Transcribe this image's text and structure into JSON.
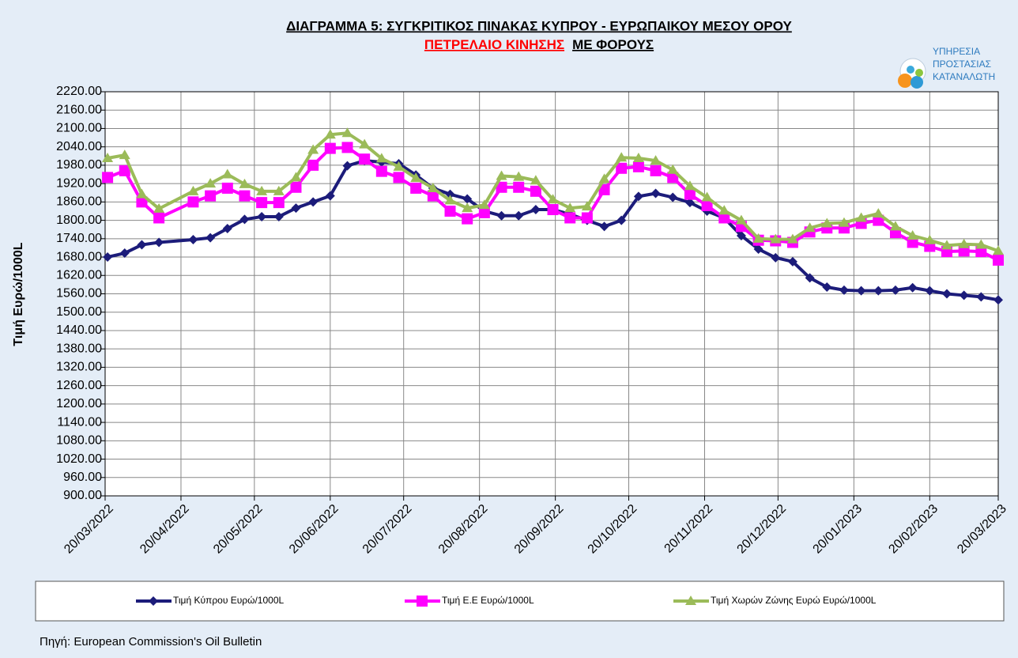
{
  "chart_data": {
    "type": "line",
    "title": "ΔΙΑΓΡΑΜΜΑ 5: ΣΥΓΚΡΙΤΙΚΟΣ ΠΙΝΑΚΑΣ ΚΥΠΡΟΥ - ΕΥΡΩΠΑΙΚΟΥ ΜΕΣΟΥ ΟΡΟΥ",
    "subtitle": [
      "ΠΕΤΡΕΛΑΙΟ ΚΙΝΗΣΗΣ",
      "ΜΕ ΦΟΡΟΥΣ"
    ],
    "logo": [
      "ΥΠΗΡΕΣΙΑ",
      "ΠΡΟΣΤΑΣΙΑΣ",
      "ΚΑΤΑΝΑΛΩΤΗ"
    ],
    "y_label": "Τιμή Ευρώ/1000L",
    "source": "Πηγή: European Commission's Oil Bulletin",
    "x": [
      "2022-03-21",
      "2022-03-28",
      "2022-04-04",
      "2022-04-11",
      "2022-04-25",
      "2022-05-02",
      "2022-05-09",
      "2022-05-16",
      "2022-05-23",
      "2022-05-30",
      "2022-06-06",
      "2022-06-13",
      "2022-06-20",
      "2022-06-27",
      "2022-07-04",
      "2022-07-11",
      "2022-07-18",
      "2022-07-25",
      "2022-08-01",
      "2022-08-08",
      "2022-08-15",
      "2022-08-22",
      "2022-08-29",
      "2022-09-05",
      "2022-09-12",
      "2022-09-19",
      "2022-09-26",
      "2022-10-03",
      "2022-10-10",
      "2022-10-17",
      "2022-10-24",
      "2022-10-31",
      "2022-11-07",
      "2022-11-14",
      "2022-11-21",
      "2022-11-28",
      "2022-12-05",
      "2022-12-12",
      "2022-12-19",
      "2022-12-26",
      "2023-01-02",
      "2023-01-09",
      "2023-01-16",
      "2023-01-23",
      "2023-01-30",
      "2023-02-06",
      "2023-02-13",
      "2023-02-20",
      "2023-02-27",
      "2023-03-06",
      "2023-03-13",
      "2023-03-20"
    ],
    "series": [
      {
        "name": "Τιμή Κύπρου Ευρώ/1000L",
        "color": "#1c1c7a",
        "marker": "diamond",
        "values": [
          1680,
          1693,
          1720,
          1728,
          1737,
          1743,
          1773,
          1803,
          1812,
          1812,
          1840,
          1860,
          1880,
          1978,
          1995,
          1990,
          1985,
          1948,
          1905,
          1885,
          1870,
          1830,
          1815,
          1815,
          1835,
          1835,
          1820,
          1800,
          1780,
          1800,
          1878,
          1888,
          1875,
          1858,
          1830,
          1808,
          1750,
          1706,
          1678,
          1665,
          1612,
          1582,
          1572,
          1570,
          1570,
          1572,
          1580,
          1570,
          1560,
          1555,
          1550,
          1540
        ]
      },
      {
        "name": "Τιμή Ε.Ε Ευρώ/1000L",
        "color": "#ff00ff",
        "marker": "square",
        "values": [
          1940,
          1962,
          1860,
          1808,
          1860,
          1880,
          1905,
          1880,
          1858,
          1858,
          1908,
          1980,
          2035,
          2038,
          2000,
          1960,
          1940,
          1905,
          1880,
          1830,
          1805,
          1825,
          1908,
          1908,
          1895,
          1835,
          1808,
          1808,
          1900,
          1970,
          1975,
          1962,
          1940,
          1885,
          1848,
          1808,
          1780,
          1735,
          1733,
          1728,
          1762,
          1775,
          1775,
          1790,
          1800,
          1760,
          1728,
          1715,
          1698,
          1700,
          1698,
          1670
        ]
      },
      {
        "name": "Τιμή Χωρών Ζώνης Ευρώ Ευρώ/1000L",
        "color": "#9bbb59",
        "marker": "triangle",
        "values": [
          2003,
          2013,
          1885,
          1838,
          1895,
          1920,
          1950,
          1918,
          1895,
          1895,
          1940,
          2030,
          2080,
          2085,
          2048,
          2002,
          1975,
          1938,
          1905,
          1865,
          1840,
          1850,
          1945,
          1942,
          1930,
          1868,
          1840,
          1845,
          1935,
          2005,
          2003,
          1995,
          1965,
          1912,
          1875,
          1832,
          1800,
          1740,
          1738,
          1738,
          1775,
          1790,
          1792,
          1808,
          1822,
          1780,
          1750,
          1735,
          1718,
          1722,
          1720,
          1700
        ]
      }
    ],
    "xlim": [
      "2022-03-20",
      "2023-03-20"
    ],
    "xticks": [
      {
        "value": "2022-03-20",
        "label": "20/03/2022"
      },
      {
        "value": "2022-04-20",
        "label": "20/04/2022"
      },
      {
        "value": "2022-05-20",
        "label": "20/05/2022"
      },
      {
        "value": "2022-06-20",
        "label": "20/06/2022"
      },
      {
        "value": "2022-07-20",
        "label": "20/07/2022"
      },
      {
        "value": "2022-08-20",
        "label": "20/08/2022"
      },
      {
        "value": "2022-09-20",
        "label": "20/09/2022"
      },
      {
        "value": "2022-10-20",
        "label": "20/10/2022"
      },
      {
        "value": "2022-11-20",
        "label": "20/11/2022"
      },
      {
        "value": "2022-12-20",
        "label": "20/12/2022"
      },
      {
        "value": "2023-01-20",
        "label": "20/01/2023"
      },
      {
        "value": "2023-02-20",
        "label": "20/02/2023"
      },
      {
        "value": "2023-03-20",
        "label": "20/03/2023"
      }
    ],
    "ylim": [
      900,
      2220
    ],
    "yticks": [
      {
        "value": 900,
        "label": "900.00"
      },
      {
        "value": 960,
        "label": "960.00"
      },
      {
        "value": 1020,
        "label": "1020.00"
      },
      {
        "value": 1080,
        "label": "1080.00"
      },
      {
        "value": 1140,
        "label": "1140.00"
      },
      {
        "value": 1200,
        "label": "1200.00"
      },
      {
        "value": 1260,
        "label": "1260.00"
      },
      {
        "value": 1320,
        "label": "1320.00"
      },
      {
        "value": 1380,
        "label": "1380.00"
      },
      {
        "value": 1440,
        "label": "1440.00"
      },
      {
        "value": 1500,
        "label": "1500.00"
      },
      {
        "value": 1560,
        "label": "1560.00"
      },
      {
        "value": 1620,
        "label": "1620.00"
      },
      {
        "value": 1680,
        "label": "1680.00"
      },
      {
        "value": 1740,
        "label": "1740.00"
      },
      {
        "value": 1800,
        "label": "1800.00"
      },
      {
        "value": 1860,
        "label": "1860.00"
      },
      {
        "value": 1920,
        "label": "1920.00"
      },
      {
        "value": 1980,
        "label": "1980.00"
      },
      {
        "value": 2040,
        "label": "2040.00"
      },
      {
        "value": 2100,
        "label": "2100.00"
      },
      {
        "value": 2160,
        "label": "2160.00"
      },
      {
        "value": 2220,
        "label": "2220.00"
      }
    ],
    "grid": true,
    "legend": "bottom"
  }
}
